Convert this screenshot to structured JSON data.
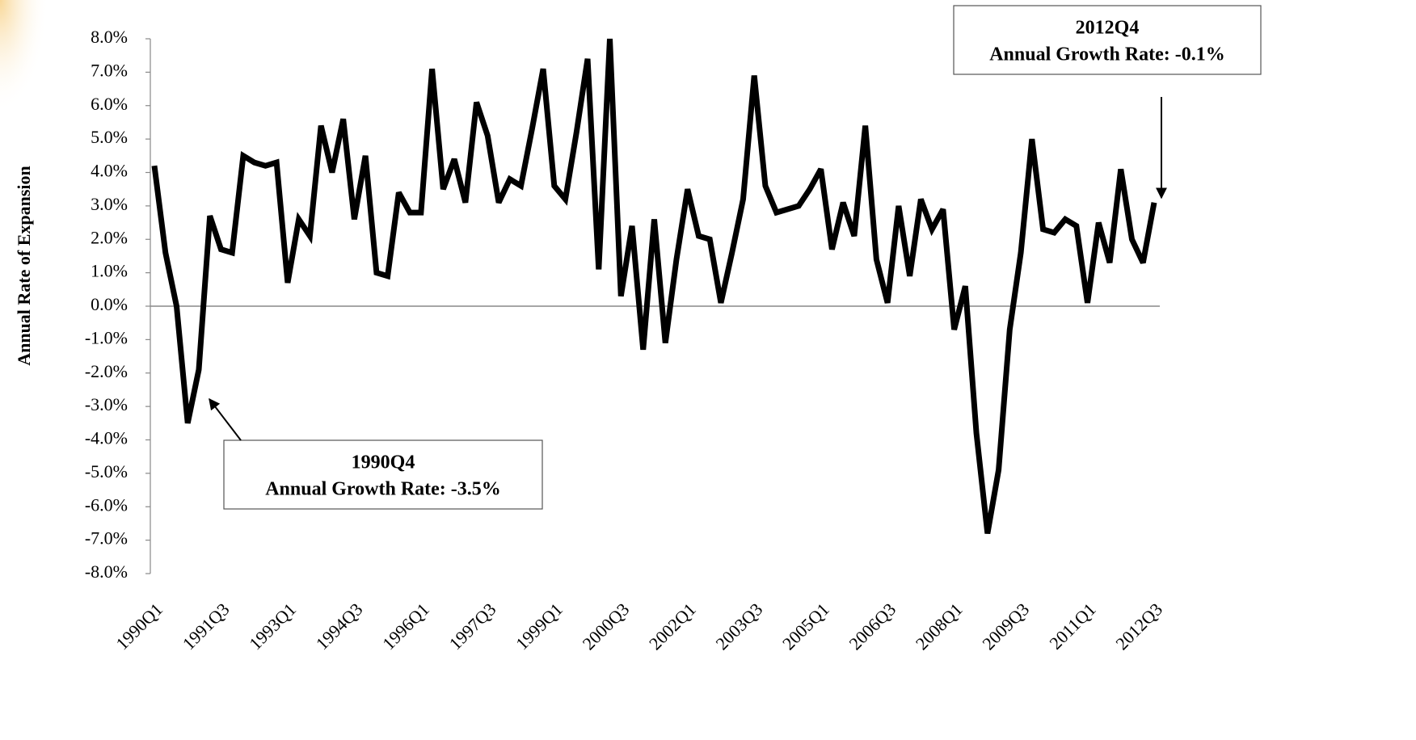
{
  "chart_data": {
    "type": "line",
    "y_label": "Annual Rate of Expansion",
    "categories": [
      "1990Q1",
      null,
      null,
      null,
      null,
      null,
      "1991Q3",
      null,
      null,
      null,
      null,
      null,
      "1993Q1",
      null,
      null,
      null,
      null,
      null,
      "1994Q3",
      null,
      null,
      null,
      null,
      null,
      "1996Q1",
      null,
      null,
      null,
      null,
      null,
      "1997Q3",
      null,
      null,
      null,
      null,
      null,
      "1999Q1",
      null,
      null,
      null,
      null,
      null,
      "2000Q3",
      null,
      null,
      null,
      null,
      null,
      "2002Q1",
      null,
      null,
      null,
      null,
      null,
      "2003Q3",
      null,
      null,
      null,
      null,
      null,
      "2005Q1",
      null,
      null,
      null,
      null,
      null,
      "2006Q3",
      null,
      null,
      null,
      null,
      null,
      "2008Q1",
      null,
      null,
      null,
      null,
      null,
      "2009Q3",
      null,
      null,
      null,
      null,
      null,
      "2011Q1",
      null,
      null,
      null,
      null,
      null,
      "2012Q3"
    ],
    "values": [
      4.2,
      1.6,
      0.0,
      -3.5,
      -1.9,
      2.7,
      1.7,
      1.6,
      4.5,
      4.3,
      4.2,
      4.3,
      0.7,
      2.6,
      2.1,
      5.4,
      4.0,
      5.6,
      2.6,
      4.5,
      1.0,
      0.9,
      3.4,
      2.8,
      2.8,
      7.1,
      3.5,
      4.4,
      3.1,
      6.1,
      5.1,
      3.1,
      3.8,
      3.6,
      5.3,
      7.1,
      3.6,
      3.2,
      5.2,
      7.4,
      1.1,
      8.0,
      0.3,
      2.4,
      -1.3,
      2.6,
      -1.1,
      1.4,
      3.5,
      2.1,
      2.0,
      0.1,
      1.6,
      3.2,
      6.9,
      3.6,
      2.8,
      2.9,
      3.0,
      3.5,
      4.1,
      1.7,
      3.1,
      2.1,
      5.4,
      1.4,
      0.1,
      3.0,
      0.9,
      3.2,
      2.3,
      2.9,
      -0.7,
      0.6,
      -3.8,
      -6.8,
      -4.9,
      -0.7,
      1.6,
      5.0,
      2.3,
      2.2,
      2.6,
      2.4,
      0.1,
      2.5,
      1.3,
      4.1,
      2.0,
      1.3,
      3.1
    ],
    "color": "#000000",
    "ylim": [
      -8,
      8
    ],
    "yticks": [
      {
        "value": -8,
        "label": "-8.0%"
      },
      {
        "value": -7,
        "label": "-7.0%"
      },
      {
        "value": -6,
        "label": "-6.0%"
      },
      {
        "value": -5,
        "label": "-5.0%"
      },
      {
        "value": -4,
        "label": "-4.0%"
      },
      {
        "value": -3,
        "label": "-3.0%"
      },
      {
        "value": -2,
        "label": "-2.0%"
      },
      {
        "value": -1,
        "label": "-1.0%"
      },
      {
        "value": 0,
        "label": "0.0%"
      },
      {
        "value": 1,
        "label": "1.0%"
      },
      {
        "value": 2,
        "label": "2.0%"
      },
      {
        "value": 3,
        "label": "3.0%"
      },
      {
        "value": 4,
        "label": "4.0%"
      },
      {
        "value": 5,
        "label": "5.0%"
      },
      {
        "value": 6,
        "label": "6.0%"
      },
      {
        "value": 7,
        "label": "7.0%"
      },
      {
        "value": 8,
        "label": "8.0%"
      }
    ],
    "annotations": [
      {
        "lines": [
          "1990Q4",
          "Annual Growth Rate: -3.5%"
        ]
      },
      {
        "lines": [
          "2012Q4",
          "Annual Growth Rate: -0.1%"
        ]
      }
    ]
  }
}
